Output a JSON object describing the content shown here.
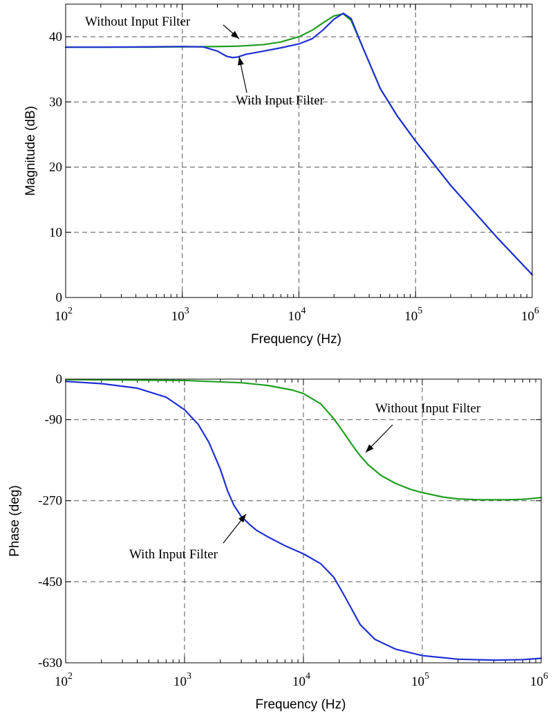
{
  "chart_data": [
    {
      "type": "line",
      "xlabel": "Frequency (Hz)",
      "ylabel": "Magnitude (dB)",
      "xscale": "log",
      "xlim": [
        100,
        1000000
      ],
      "ylim": [
        0,
        45
      ],
      "grid": true,
      "xticks": [
        {
          "base": "10",
          "exp": "2"
        },
        {
          "base": "10",
          "exp": "3"
        },
        {
          "base": "10",
          "exp": "4"
        },
        {
          "base": "10",
          "exp": "5"
        },
        {
          "base": "10",
          "exp": "6"
        }
      ],
      "yticks": [
        "0",
        "10",
        "20",
        "30",
        "40"
      ],
      "ytick_values": [
        0,
        10,
        20,
        30,
        40
      ],
      "series": [
        {
          "name": "Without Input Filter",
          "color": "#1f9e1f",
          "x": [
            100,
            200,
            500,
            1000,
            2000,
            3000,
            5000,
            7000,
            10000,
            13000,
            16000,
            20000,
            24000,
            28000,
            35000,
            50000,
            70000,
            100000,
            200000,
            500000,
            1000000
          ],
          "y": [
            38.4,
            38.4,
            38.4,
            38.45,
            38.5,
            38.55,
            38.8,
            39.2,
            40.0,
            41.0,
            42.1,
            43.2,
            43.5,
            42.5,
            38.5,
            32.0,
            27.8,
            24.0,
            17.2,
            9.2,
            3.5
          ]
        },
        {
          "name": "With Input Filter",
          "color": "#1f2fd4",
          "x": [
            100,
            200,
            500,
            1000,
            1500,
            2000,
            2400,
            2700,
            3000,
            3500,
            5000,
            7000,
            10000,
            13000,
            16000,
            20000,
            24000,
            28000,
            35000,
            50000,
            70000,
            100000,
            200000,
            500000,
            1000000
          ],
          "y": [
            38.4,
            38.4,
            38.45,
            38.5,
            38.45,
            37.8,
            37.0,
            36.8,
            36.9,
            37.3,
            37.8,
            38.3,
            38.9,
            39.7,
            41.0,
            42.7,
            43.6,
            42.8,
            38.5,
            32.0,
            27.8,
            24.0,
            17.2,
            9.2,
            3.5
          ]
        }
      ],
      "annotations": [
        {
          "text": "Without Input Filter",
          "x": 3500,
          "y": 38.6
        },
        {
          "text": "With Input Filter",
          "x": 2800,
          "y": 36.8
        }
      ]
    },
    {
      "type": "line",
      "xlabel": "Frequency (Hz)",
      "ylabel": "Phase (deg)",
      "xscale": "log",
      "xlim": [
        100,
        1000000
      ],
      "ylim": [
        -630,
        0
      ],
      "grid": true,
      "xticks": [
        {
          "base": "10",
          "exp": "2"
        },
        {
          "base": "10",
          "exp": "3"
        },
        {
          "base": "10",
          "exp": "4"
        },
        {
          "base": "10",
          "exp": "5"
        },
        {
          "base": "10",
          "exp": "6"
        }
      ],
      "yticks": [
        "0",
        "-90",
        "-270",
        "-450",
        "-630"
      ],
      "ytick_values": [
        0,
        -90,
        -270,
        -450,
        -630
      ],
      "ygrid_values": [
        0,
        -90,
        -270,
        -450,
        -630
      ],
      "series": [
        {
          "name": "Without Input Filter",
          "color": "#1f9e1f",
          "x": [
            100,
            300,
            1000,
            3000,
            5000,
            8000,
            10000,
            14000,
            18000,
            22000,
            26000,
            30000,
            35000,
            45000,
            60000,
            80000,
            100000,
            150000,
            200000,
            300000,
            500000,
            700000,
            1000000
          ],
          "y": [
            -1,
            -2,
            -3,
            -8,
            -14,
            -24,
            -32,
            -55,
            -88,
            -120,
            -148,
            -170,
            -190,
            -214,
            -232,
            -245,
            -252,
            -262,
            -266,
            -268,
            -268,
            -267,
            -263
          ]
        },
        {
          "name": "With Input Filter",
          "color": "#1f2fd4",
          "x": [
            100,
            200,
            400,
            700,
            1000,
            1300,
            1600,
            2000,
            2300,
            2600,
            3000,
            3500,
            4000,
            5000,
            7000,
            10000,
            14000,
            18000,
            22000,
            26000,
            30000,
            40000,
            60000,
            100000,
            200000,
            400000,
            700000,
            1000000
          ],
          "y": [
            -5,
            -10,
            -20,
            -40,
            -68,
            -100,
            -140,
            -200,
            -248,
            -280,
            -305,
            -322,
            -335,
            -350,
            -370,
            -388,
            -410,
            -440,
            -480,
            -515,
            -545,
            -578,
            -600,
            -614,
            -622,
            -624,
            -623,
            -620
          ]
        }
      ],
      "annotations": [
        {
          "text": "Without Input Filter",
          "x": 30000,
          "y": -145
        },
        {
          "text": "With Input Filter",
          "x": 3400,
          "y": -290
        }
      ]
    }
  ]
}
